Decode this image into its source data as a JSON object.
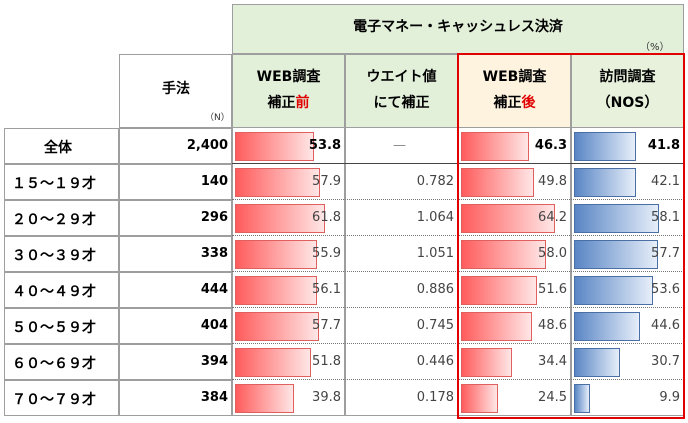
{
  "header": {
    "group_title": "電子マネー・キャッシュレス決済",
    "unit": "（%）",
    "method_label": "手法",
    "n_label": "（N）",
    "columns": [
      {
        "line1": "WEB調査",
        "line2a": "補正",
        "line2b": "前"
      },
      {
        "line1": "ウエイト値",
        "line2a": "にて補正",
        "line2b": ""
      },
      {
        "line1": "WEB調査",
        "line2a": "補正",
        "line2b": "後"
      },
      {
        "line1": "訪問調査",
        "line2a": "（NOS）",
        "line2b": ""
      }
    ]
  },
  "rows": [
    {
      "label": "全体",
      "n": "2,400",
      "web_pre": "53.8",
      "weight": "—",
      "web_post": "46.3",
      "nos": "41.8",
      "web_pre_v": 53.8,
      "web_post_v": 46.3,
      "nos_v": 41.8
    },
    {
      "label": "１５～１９才",
      "n": "140",
      "web_pre": "57.9",
      "weight": "0.782",
      "web_post": "49.8",
      "nos": "42.1",
      "web_pre_v": 57.9,
      "web_post_v": 49.8,
      "nos_v": 42.1
    },
    {
      "label": "２０～２９才",
      "n": "296",
      "web_pre": "61.8",
      "weight": "1.064",
      "web_post": "64.2",
      "nos": "58.1",
      "web_pre_v": 61.8,
      "web_post_v": 64.2,
      "nos_v": 58.1
    },
    {
      "label": "３０～３９才",
      "n": "338",
      "web_pre": "55.9",
      "weight": "1.051",
      "web_post": "58.0",
      "nos": "57.7",
      "web_pre_v": 55.9,
      "web_post_v": 58.0,
      "nos_v": 57.7
    },
    {
      "label": "４０～４９才",
      "n": "444",
      "web_pre": "56.1",
      "weight": "0.886",
      "web_post": "51.6",
      "nos": "53.6",
      "web_pre_v": 56.1,
      "web_post_v": 51.6,
      "nos_v": 53.6
    },
    {
      "label": "５０～５９才",
      "n": "404",
      "web_pre": "57.7",
      "weight": "0.745",
      "web_post": "48.6",
      "nos": "44.6",
      "web_pre_v": 57.7,
      "web_post_v": 48.6,
      "nos_v": 44.6
    },
    {
      "label": "６０～６９才",
      "n": "394",
      "web_pre": "51.8",
      "weight": "0.446",
      "web_post": "34.4",
      "nos": "30.7",
      "web_pre_v": 51.8,
      "web_post_v": 34.4,
      "nos_v": 30.7
    },
    {
      "label": "７０～７９才",
      "n": "384",
      "web_pre": "39.8",
      "weight": "0.178",
      "web_post": "24.5",
      "nos": "9.9",
      "web_pre_v": 39.8,
      "web_post_v": 24.5,
      "nos_v": 9.9
    }
  ],
  "colors": {
    "red_bar": "#ff5c5c",
    "blue_bar": "#5a86c5",
    "highlight_border": "#e00000",
    "header_bg": "#e2efd9"
  }
}
